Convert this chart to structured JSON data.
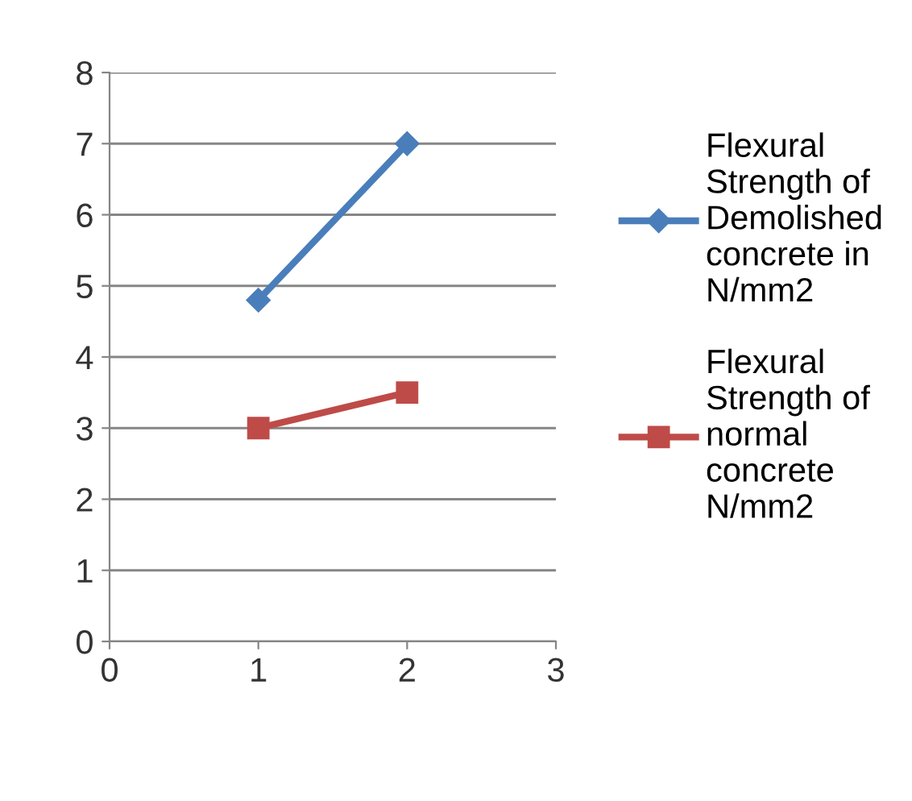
{
  "chart_data": {
    "type": "line",
    "x": [
      1,
      2
    ],
    "series": [
      {
        "name": "Flexural Strength of Demolished concrete in N/mm2",
        "color": "#4a7ebb",
        "values": [
          4.8,
          7.0
        ],
        "marker": "diamond"
      },
      {
        "name": "Flexural Strength of normal concrete N/mm2",
        "color": "#be4b48",
        "values": [
          3.0,
          3.5
        ],
        "marker": "square"
      }
    ],
    "xlim": [
      0,
      3
    ],
    "xticks": [
      0,
      1,
      2,
      3
    ],
    "ylim": [
      0,
      8
    ],
    "yticks": [
      0,
      1,
      2,
      3,
      4,
      5,
      6,
      7,
      8
    ],
    "grid": "y",
    "legend": "right",
    "line_style": "solid"
  }
}
